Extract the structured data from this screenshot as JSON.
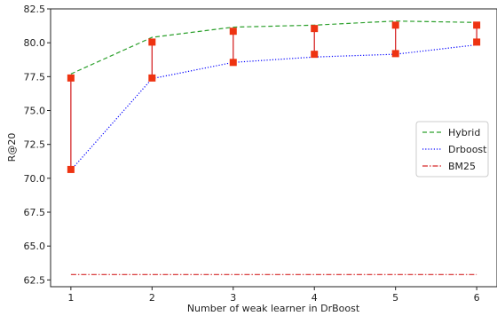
{
  "chart_data": {
    "type": "line",
    "xlabel": "Number of weak learner in DrBoost",
    "ylabel": "R@20",
    "x": [
      1,
      2,
      3,
      4,
      5,
      6
    ],
    "xlim": [
      0.75,
      6.25
    ],
    "ylim": [
      62.0,
      82.5
    ],
    "xticks": [
      "1",
      "2",
      "3",
      "4",
      "5",
      "6"
    ],
    "yticks": [
      "62.5",
      "65.0",
      "67.5",
      "70.0",
      "72.5",
      "75.0",
      "77.5",
      "80.0",
      "82.5"
    ],
    "series": [
      {
        "name": "Hybrid",
        "values": [
          77.7,
          80.4,
          81.15,
          81.3,
          81.6,
          81.5
        ],
        "color": "#2ca02c",
        "style": "dashed"
      },
      {
        "name": "Drboost",
        "values": [
          70.6,
          77.35,
          78.55,
          78.95,
          79.15,
          79.85
        ],
        "color": "#0000ff",
        "style": "dotted"
      },
      {
        "name": "BM25",
        "values": [
          62.9,
          62.9,
          62.9,
          62.9,
          62.9,
          62.9
        ],
        "color": "#d62728",
        "style": "dashdot"
      }
    ],
    "error_bars": {
      "color": "#d62728",
      "marker_color": "#ee3311",
      "low": [
        70.65,
        77.4,
        78.55,
        79.15,
        79.2,
        80.05
      ],
      "high": [
        77.4,
        80.05,
        80.85,
        81.05,
        81.3,
        81.3
      ]
    },
    "legend_position": "right",
    "grid": false
  }
}
